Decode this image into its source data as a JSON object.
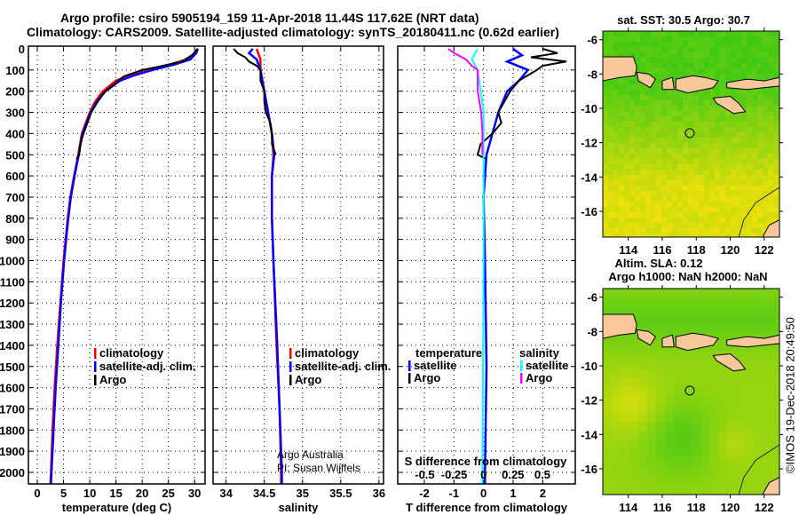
{
  "header": {
    "title_line1": "Argo profile: csiro 5905194_159 11-Apr-2018 11.44S 117.62E (NRT data)",
    "title_line2": "Climatology: CARS2009. Satellite-adjusted climatology: synTS_20180411.nc (0.62d earlier)"
  },
  "colors": {
    "climatology": "#ff0000",
    "satellite": "#0000ff",
    "argo": "#000000",
    "s_satellite": "#00ffff",
    "s_argo": "#ff00ff"
  },
  "chart_data": [
    {
      "type": "line",
      "id": "temperature",
      "xlabel": "temperature (deg C)",
      "ylabel": "depth",
      "xlim": [
        -1.7,
        32
      ],
      "ylim": [
        2055,
        0
      ],
      "xticks": [
        "0",
        "5",
        "10",
        "15",
        "20",
        "25",
        "30"
      ],
      "xtick_values": [
        0,
        5,
        10,
        15,
        20,
        25,
        30
      ],
      "yticks": [
        "0",
        "100",
        "200",
        "300",
        "400",
        "500",
        "600",
        "700",
        "800",
        "900",
        "1000",
        "1100",
        "1200",
        "1300",
        "1400",
        "1500",
        "1600",
        "1700",
        "1800",
        "1900",
        "2000"
      ],
      "ytick_values": [
        0,
        100,
        200,
        300,
        400,
        500,
        600,
        700,
        800,
        900,
        1000,
        1100,
        1200,
        1300,
        1400,
        1500,
        1600,
        1700,
        1800,
        1900,
        2000
      ],
      "grid": true,
      "legend": [
        "climatology",
        "satellite-adj. clim.",
        "Argo"
      ],
      "series": [
        {
          "name": "climatology",
          "color_key": "climatology",
          "depth": [
            0,
            20,
            50,
            75,
            100,
            125,
            150,
            200,
            250,
            300,
            400,
            500,
            600,
            700,
            800,
            900,
            1000,
            1200,
            1400,
            1600,
            1800,
            2000,
            2055
          ],
          "values": [
            30.5,
            30,
            28.5,
            25,
            21,
            17.5,
            15,
            12.5,
            11,
            10,
            8.5,
            7.8,
            7,
            6.3,
            5.8,
            5.4,
            5,
            4.4,
            3.8,
            3.3,
            2.9,
            2.6,
            2.5
          ]
        },
        {
          "name": "satellite-adj. clim.",
          "color_key": "satellite",
          "depth": [
            0,
            20,
            50,
            75,
            100,
            125,
            150,
            200,
            250,
            300,
            400,
            500,
            600,
            700,
            800,
            900,
            1000,
            1200,
            1400,
            1600,
            1800,
            2000,
            2055
          ],
          "values": [
            30.6,
            30.3,
            29.2,
            26,
            22,
            18.5,
            15.8,
            13,
            11.3,
            10.2,
            8.6,
            7.9,
            7.1,
            6.4,
            5.9,
            5.5,
            5.1,
            4.5,
            4,
            3.5,
            3.1,
            2.7,
            2.6
          ]
        },
        {
          "name": "Argo",
          "color_key": "argo",
          "depth": [
            0,
            30,
            60,
            80,
            100,
            130,
            160,
            200,
            250,
            300,
            400,
            450,
            500,
            520
          ],
          "values": [
            30.7,
            29.5,
            27.5,
            24,
            20,
            16.5,
            15,
            13,
            11.5,
            10.3,
            8.8,
            8.2,
            8,
            7.5
          ]
        }
      ]
    },
    {
      "type": "line",
      "id": "salinity",
      "xlabel": "salinity",
      "xlim": [
        33.83,
        36.06
      ],
      "ylim": [
        2055,
        0
      ],
      "xticks": [
        "34",
        "34.5",
        "35",
        "35.5",
        "36"
      ],
      "xtick_values": [
        34,
        34.5,
        35,
        35.5,
        36
      ],
      "grid": true,
      "legend": [
        "climatology",
        "satellite-adj. clim.",
        "Argo"
      ],
      "annotation": [
        "Argo Australia",
        "PI: Susan Wijffels"
      ],
      "series": [
        {
          "name": "climatology",
          "color_key": "climatology",
          "depth": [
            0,
            50,
            100,
            200,
            300,
            400,
            500,
            600,
            800,
            1000,
            1400,
            1700,
            2000,
            2055
          ],
          "values": [
            34.4,
            34.45,
            34.45,
            34.5,
            34.55,
            34.6,
            34.62,
            34.6,
            34.6,
            34.62,
            34.66,
            34.7,
            34.72,
            34.72
          ]
        },
        {
          "name": "satellite-adj. clim.",
          "color_key": "satellite",
          "depth": [
            0,
            20,
            50,
            100,
            200,
            300,
            400,
            500,
            600,
            800,
            1000,
            1400,
            1700,
            2000,
            2055
          ],
          "values": [
            34.35,
            34.3,
            34.4,
            34.45,
            34.5,
            34.55,
            34.6,
            34.63,
            34.6,
            34.6,
            34.62,
            34.67,
            34.7,
            34.73,
            34.73
          ]
        },
        {
          "name": "Argo",
          "color_key": "argo",
          "depth": [
            0,
            20,
            40,
            60,
            80,
            100,
            150,
            200,
            250,
            300,
            350,
            400,
            450,
            500
          ],
          "values": [
            34.1,
            34.15,
            34.25,
            34.3,
            34.4,
            34.45,
            34.45,
            34.5,
            34.5,
            34.52,
            34.58,
            34.6,
            34.6,
            34.65
          ]
        }
      ]
    },
    {
      "type": "line",
      "id": "differences",
      "xlabel": "T difference from climatology",
      "x2label": "S difference from climatology",
      "xlim": [
        -2.9,
        3.1
      ],
      "x2lim": [
        -0.73,
        0.78
      ],
      "ylim": [
        2055,
        0
      ],
      "xticks": [
        "-2",
        "-1",
        "0",
        "1",
        "2"
      ],
      "xtick_values": [
        -2,
        -1,
        0,
        1,
        2
      ],
      "x2ticks": [
        "-0.5",
        "-0.25",
        "0",
        "0.25",
        "0.5"
      ],
      "x2tick_values": [
        -0.5,
        -0.25,
        0,
        0.25,
        0.5
      ],
      "grid": true,
      "legend_temperature": {
        "title": "temperature",
        "items": [
          "satellite",
          "Argo"
        ]
      },
      "legend_salinity": {
        "title": "salinity",
        "items": [
          "satellite",
          "Argo"
        ]
      },
      "series": [
        {
          "name": "T satellite",
          "axis": "T",
          "color_key": "satellite",
          "depth": [
            0,
            30,
            60,
            100,
            150,
            200,
            300,
            400,
            500,
            700,
            1000,
            1500,
            2000,
            2055
          ],
          "values": [
            1,
            1.3,
            0.8,
            1.5,
            1.2,
            0.8,
            0.5,
            0.3,
            0.1,
            0,
            0.05,
            0.1,
            0.05,
            0.05
          ]
        },
        {
          "name": "T Argo",
          "axis": "T",
          "color_key": "argo",
          "depth": [
            0,
            20,
            40,
            60,
            80,
            100,
            150,
            200,
            250,
            300,
            350,
            400,
            450,
            500,
            520
          ],
          "values": [
            2,
            2.5,
            1.6,
            2.8,
            2,
            1.8,
            1.2,
            0.9,
            0.7,
            0.5,
            0.6,
            0.3,
            -0.1,
            -0.2,
            0.1
          ]
        },
        {
          "name": "S satellite",
          "axis": "S",
          "color_key": "s_satellite",
          "depth": [
            0,
            50,
            100,
            300,
            1000,
            2000,
            2055
          ],
          "values": [
            -0.05,
            -0.1,
            -0.05,
            0,
            0,
            -0.01,
            -0.01
          ]
        },
        {
          "name": "S Argo",
          "axis": "S",
          "color_key": "s_argo",
          "depth": [
            0,
            20,
            50,
            80,
            100,
            200,
            300,
            400,
            500
          ],
          "values": [
            -0.3,
            -0.25,
            -0.15,
            -0.1,
            -0.05,
            -0.05,
            -0.02,
            -0.01,
            -0.01
          ]
        }
      ]
    },
    {
      "type": "heatmap",
      "id": "sst-map",
      "title": "sat. SST: 30.5 Argo: 30.7",
      "xlim": [
        112.5,
        122.9
      ],
      "ylim": [
        -17.5,
        -5.5
      ],
      "xticks": [
        "114",
        "116",
        "118",
        "120",
        "122"
      ],
      "xtick_values": [
        114,
        116,
        118,
        120,
        122
      ],
      "yticks": [
        "-6",
        "-8",
        "-10",
        "-12",
        "-14",
        "-16"
      ],
      "ytick_values": [
        -6,
        -8,
        -10,
        -12,
        -14,
        -16
      ],
      "marker": {
        "lon": 117.62,
        "lat": -11.44
      }
    },
    {
      "type": "heatmap",
      "id": "sla-map",
      "title": "Altim. SLA: 0.12",
      "subtitle": "Argo h1000: NaN h2000: NaN",
      "xlim": [
        112.5,
        122.9
      ],
      "ylim": [
        -17.5,
        -5.5
      ],
      "xticks": [
        "114",
        "116",
        "118",
        "120",
        "122"
      ],
      "xtick_values": [
        114,
        116,
        118,
        120,
        122
      ],
      "yticks": [
        "-6",
        "-8",
        "-10",
        "-12",
        "-14",
        "-16"
      ],
      "ytick_values": [
        -6,
        -8,
        -10,
        -12,
        -14,
        -16
      ],
      "marker": {
        "lon": 117.62,
        "lat": -11.44
      }
    }
  ],
  "footer": {
    "stamp": "©IMOS 19-Dec-2018 20:49:50"
  }
}
